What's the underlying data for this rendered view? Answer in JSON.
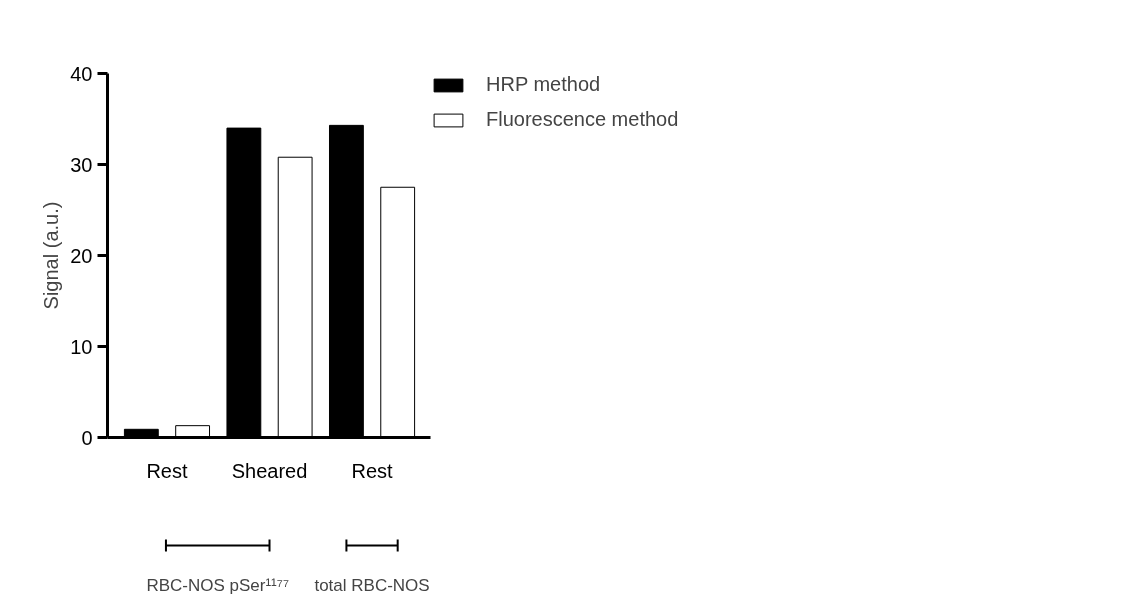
{
  "chart_data": {
    "type": "bar",
    "ylabel": "Signal (a.u.)",
    "categories": [
      "Rest",
      "Sheared",
      "Rest"
    ],
    "series": [
      {
        "name": "HRP method",
        "color": "#000000",
        "values": [
          0.9,
          34.0,
          34.3
        ]
      },
      {
        "name": "Fluorescence method",
        "color": "#ffffff",
        "values": [
          1.3,
          30.8,
          27.5
        ]
      }
    ],
    "ylim": [
      0,
      40
    ],
    "yticks": [
      0,
      10,
      20,
      30,
      40
    ],
    "grid": false,
    "legend": "top right",
    "annotations": [
      "RBC-NOS pSer¹¹⁷⁷",
      "total RBC-NOS"
    ]
  }
}
